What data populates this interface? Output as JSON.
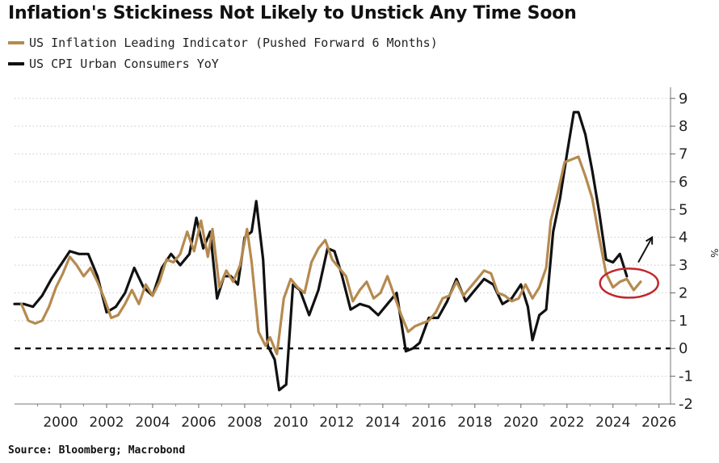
{
  "chart_data": {
    "type": "line",
    "title": "Inflation's Stickiness Not Likely to Unstick Any Time Soon",
    "source": "Source: Bloomberg; Macrobond",
    "ylabel": "%",
    "ylim": [
      -2,
      9.4
    ],
    "xlim": [
      1998.0,
      2026.5
    ],
    "yticks": [
      "9",
      "8",
      "7",
      "6",
      "5",
      "4",
      "3",
      "2",
      "1",
      "0",
      "-1",
      "-2"
    ],
    "yticks_values": [
      9,
      8,
      7,
      6,
      5,
      4,
      3,
      2,
      1,
      0,
      -1,
      -2
    ],
    "xticks": [
      "2000",
      "2002",
      "2004",
      "2006",
      "2008",
      "2010",
      "2012",
      "2014",
      "2016",
      "2018",
      "2020",
      "2022",
      "2024",
      "2026"
    ],
    "xticks_values": [
      2000,
      2002,
      2004,
      2006,
      2008,
      2010,
      2012,
      2014,
      2016,
      2018,
      2020,
      2022,
      2024,
      2026
    ],
    "grid": "horizontal dotted",
    "reference_line": 0,
    "colors": {
      "leading": "#b58a50",
      "cpi": "#111111",
      "circle": "#c0272d",
      "arrow": "#111111"
    },
    "series": [
      {
        "name": "US Inflation Leading Indicator (Pushed Forward 6 Months)",
        "color": "#b58a50",
        "x": [
          1998.3,
          1998.6,
          1998.9,
          1999.2,
          1999.5,
          1999.8,
          2000.1,
          2000.4,
          2000.7,
          2001.0,
          2001.3,
          2001.6,
          2001.9,
          2002.2,
          2002.5,
          2002.8,
          2003.1,
          2003.4,
          2003.7,
          2004.0,
          2004.3,
          2004.6,
          2004.9,
          2005.2,
          2005.5,
          2005.8,
          2006.1,
          2006.4,
          2006.6,
          2006.9,
          2007.2,
          2007.5,
          2007.8,
          2008.1,
          2008.3,
          2008.6,
          2008.9,
          2009.1,
          2009.4,
          2009.7,
          2010.0,
          2010.3,
          2010.6,
          2010.9,
          2011.2,
          2011.5,
          2011.8,
          2012.1,
          2012.4,
          2012.7,
          2013.0,
          2013.3,
          2013.6,
          2013.9,
          2014.2,
          2014.5,
          2014.8,
          2015.1,
          2015.4,
          2015.7,
          2016.0,
          2016.3,
          2016.6,
          2016.9,
          2017.2,
          2017.5,
          2017.8,
          2018.1,
          2018.4,
          2018.7,
          2019.0,
          2019.3,
          2019.6,
          2019.9,
          2020.2,
          2020.5,
          2020.8,
          2021.1,
          2021.3,
          2021.6,
          2021.9,
          2022.2,
          2022.5,
          2022.8,
          2023.1,
          2023.4,
          2023.7,
          2024.0,
          2024.3,
          2024.6,
          2024.9,
          2025.2
        ],
        "values": [
          1.6,
          1.0,
          0.9,
          1.0,
          1.5,
          2.2,
          2.7,
          3.3,
          3.0,
          2.6,
          2.9,
          2.4,
          1.8,
          1.1,
          1.2,
          1.6,
          2.1,
          1.6,
          2.3,
          1.9,
          2.4,
          3.2,
          3.1,
          3.4,
          4.2,
          3.5,
          4.6,
          3.3,
          4.3,
          2.2,
          2.8,
          2.4,
          3.0,
          4.3,
          3.1,
          0.6,
          0.1,
          0.4,
          -0.2,
          1.8,
          2.5,
          2.2,
          2.0,
          3.1,
          3.6,
          3.9,
          3.2,
          2.9,
          2.6,
          1.7,
          2.1,
          2.4,
          1.8,
          2.0,
          2.6,
          1.9,
          1.2,
          0.6,
          0.8,
          0.9,
          1.0,
          1.3,
          1.8,
          1.9,
          2.4,
          1.9,
          2.2,
          2.5,
          2.8,
          2.7,
          2.0,
          1.9,
          1.7,
          1.8,
          2.3,
          1.8,
          2.2,
          2.9,
          4.6,
          5.6,
          6.7,
          6.8,
          6.9,
          6.2,
          5.4,
          4.0,
          2.7,
          2.2,
          2.4,
          2.5,
          2.1,
          2.4
        ]
      },
      {
        "name": "US CPI Urban Consumers YoY",
        "color": "#111111",
        "x": [
          1998.0,
          1998.4,
          1998.8,
          1999.2,
          1999.6,
          2000.0,
          2000.4,
          2000.8,
          2001.2,
          2001.6,
          2002.0,
          2002.4,
          2002.8,
          2003.2,
          2003.6,
          2004.0,
          2004.4,
          2004.8,
          2005.2,
          2005.6,
          2005.9,
          2006.2,
          2006.5,
          2006.8,
          2007.1,
          2007.4,
          2007.7,
          2008.0,
          2008.3,
          2008.5,
          2008.8,
          2009.0,
          2009.3,
          2009.5,
          2009.8,
          2010.1,
          2010.4,
          2010.8,
          2011.2,
          2011.6,
          2011.9,
          2012.2,
          2012.6,
          2013.0,
          2013.4,
          2013.8,
          2014.2,
          2014.6,
          2015.0,
          2015.3,
          2015.6,
          2016.0,
          2016.4,
          2016.8,
          2017.2,
          2017.6,
          2018.0,
          2018.4,
          2018.8,
          2019.2,
          2019.6,
          2020.0,
          2020.3,
          2020.5,
          2020.8,
          2021.1,
          2021.4,
          2021.7,
          2022.0,
          2022.3,
          2022.5,
          2022.8,
          2023.1,
          2023.4,
          2023.7,
          2024.0,
          2024.3,
          2024.6
        ],
        "values": [
          1.6,
          1.6,
          1.5,
          1.9,
          2.5,
          3.0,
          3.5,
          3.4,
          3.4,
          2.6,
          1.3,
          1.5,
          2.0,
          2.9,
          2.2,
          1.9,
          2.9,
          3.4,
          3.0,
          3.4,
          4.7,
          3.6,
          4.2,
          1.8,
          2.6,
          2.6,
          2.3,
          4.0,
          4.2,
          5.3,
          3.2,
          0.1,
          -0.4,
          -1.5,
          -1.3,
          2.3,
          2.1,
          1.2,
          2.1,
          3.6,
          3.5,
          2.7,
          1.4,
          1.6,
          1.5,
          1.2,
          1.6,
          2.0,
          -0.1,
          0.0,
          0.2,
          1.1,
          1.1,
          1.7,
          2.5,
          1.7,
          2.1,
          2.5,
          2.3,
          1.6,
          1.8,
          2.3,
          1.5,
          0.3,
          1.2,
          1.4,
          4.2,
          5.4,
          7.0,
          8.5,
          8.5,
          7.7,
          6.4,
          4.9,
          3.2,
          3.1,
          3.4,
          2.6
        ]
      }
    ],
    "annotations": [
      {
        "type": "circle",
        "x": 2024.7,
        "y": 2.35,
        "label": ""
      },
      {
        "type": "arrow",
        "from": [
          2025.1,
          3.1
        ],
        "to": [
          2025.7,
          4.0
        ],
        "label": ""
      }
    ]
  }
}
